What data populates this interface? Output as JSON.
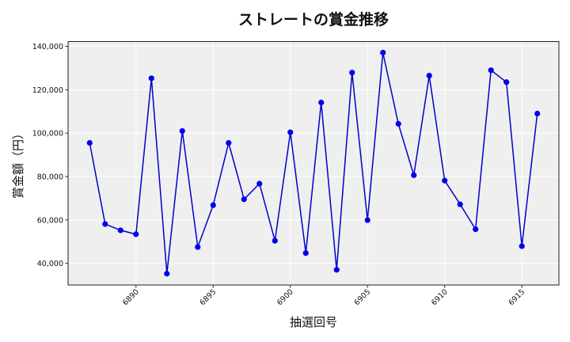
{
  "chart_data": {
    "type": "line",
    "title": "ストレートの賞金推移",
    "xlabel": "抽選回号",
    "ylabel": "賞金額（円）",
    "x": [
      6887,
      6888,
      6889,
      6890,
      6891,
      6892,
      6893,
      6894,
      6895,
      6896,
      6897,
      6898,
      6899,
      6900,
      6901,
      6902,
      6903,
      6904,
      6905,
      6906,
      6907,
      6908,
      6909,
      6910,
      6911,
      6912,
      6913,
      6914,
      6915,
      6916
    ],
    "series": [
      {
        "name": "ストレート",
        "color": "#0000cc",
        "marker_color": "#0000ee",
        "values": [
          95500,
          58100,
          55200,
          53400,
          125300,
          35200,
          101000,
          47500,
          66800,
          95500,
          69500,
          76700,
          50400,
          100400,
          44700,
          114100,
          37000,
          127900,
          59900,
          137100,
          104300,
          80600,
          126500,
          78100,
          67200,
          55700,
          129000,
          123500,
          47900,
          109000
        ]
      }
    ],
    "xlim": [
      6885.6,
      6917.4
    ],
    "ylim": [
      30000,
      142200
    ],
    "xticks": [
      6890,
      6895,
      6900,
      6905,
      6910,
      6915
    ],
    "yticks": [
      40000,
      60000,
      80000,
      100000,
      120000,
      140000
    ],
    "ytick_labels": [
      "40,000",
      "60,000",
      "80,000",
      "100,000",
      "120,000",
      "140,000"
    ],
    "grid": true,
    "legend": null,
    "background": "#efefef"
  }
}
